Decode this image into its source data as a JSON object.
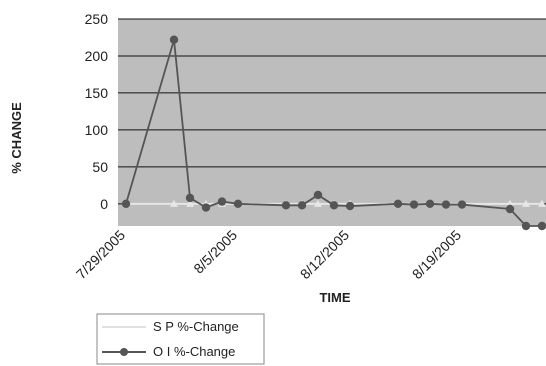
{
  "chart_data": {
    "type": "line",
    "title": "",
    "xlabel": "TIME",
    "ylabel": "% CHANGE",
    "ylim": [
      -30,
      250
    ],
    "yticks": [
      0,
      50,
      100,
      150,
      200,
      250
    ],
    "xtick_labels": [
      "7/29/2005",
      "8/5/2005",
      "8/12/2005",
      "8/19/2005"
    ],
    "xtick_dates": [
      "2005-07-29",
      "2005-08-05",
      "2005-08-12",
      "2005-08-19"
    ],
    "x_range": [
      "2005-07-29",
      "2005-08-24"
    ],
    "grid": true,
    "plot_background": "#bdbdbd",
    "legend_position": "bottom-left",
    "series": [
      {
        "name": "S P %-Change",
        "color": "#e6e6e6",
        "marker": "triangle",
        "x": [
          "2005-07-29",
          "2005-08-01",
          "2005-08-02",
          "2005-08-03",
          "2005-08-04",
          "2005-08-05",
          "2005-08-08",
          "2005-08-09",
          "2005-08-10",
          "2005-08-11",
          "2005-08-12",
          "2005-08-15",
          "2005-08-16",
          "2005-08-17",
          "2005-08-18",
          "2005-08-19",
          "2005-08-22",
          "2005-08-23",
          "2005-08-24"
        ],
        "values": [
          0,
          0,
          0,
          0,
          0,
          0,
          0,
          0,
          0,
          0,
          0,
          0,
          0,
          0,
          0,
          0,
          0,
          0,
          0
        ]
      },
      {
        "name": "O I %-Change",
        "color": "#555555",
        "marker": "circle",
        "x": [
          "2005-07-29",
          "2005-08-01",
          "2005-08-02",
          "2005-08-03",
          "2005-08-04",
          "2005-08-05",
          "2005-08-08",
          "2005-08-09",
          "2005-08-10",
          "2005-08-11",
          "2005-08-12",
          "2005-08-15",
          "2005-08-16",
          "2005-08-17",
          "2005-08-18",
          "2005-08-19",
          "2005-08-22",
          "2005-08-23",
          "2005-08-24"
        ],
        "values": [
          0,
          222,
          8,
          -5,
          3,
          0,
          -2,
          -2,
          12,
          -2,
          -3,
          0,
          -1,
          0,
          -1,
          -1,
          -7,
          -30,
          -30
        ]
      }
    ]
  }
}
